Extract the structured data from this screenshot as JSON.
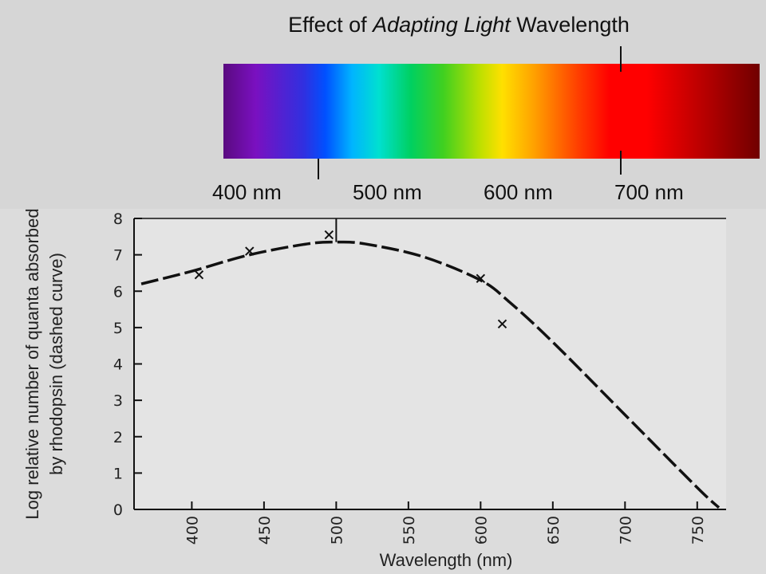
{
  "slide": {
    "title_parts": [
      "Effect of ",
      "Adapting Light",
      " Wavelength"
    ],
    "spectrum_labels": [
      "400 nm",
      "500 nm",
      "600 nm",
      "700 nm"
    ]
  },
  "chart_data": {
    "type": "scatter",
    "title": "",
    "xlabel": "Wavelength (nm)",
    "ylabel_lines": [
      "Log relative number of quanta absorbed",
      "by rhodopsin (dashed curve)"
    ],
    "xlim": [
      360,
      770
    ],
    "ylim": [
      0,
      8
    ],
    "x_ticks": [
      400,
      450,
      500,
      550,
      600,
      650,
      700,
      750
    ],
    "y_ticks": [
      0,
      1,
      2,
      3,
      4,
      5,
      6,
      7,
      8
    ],
    "series": [
      {
        "style": "dashed curve",
        "x": [
          365,
          400,
          440,
          480,
          500,
          520,
          560,
          600,
          620,
          650,
          700,
          750,
          765
        ],
        "y": [
          6.2,
          6.55,
          7.0,
          7.3,
          7.35,
          7.3,
          6.95,
          6.3,
          5.7,
          4.6,
          2.6,
          0.6,
          0.05
        ]
      },
      {
        "style": "x markers",
        "x": [
          405,
          440,
          495,
          600,
          615
        ],
        "y": [
          6.45,
          7.1,
          7.55,
          6.35,
          5.1
        ]
      }
    ],
    "annotations": [
      {
        "type": "vertical line",
        "x": 500,
        "y_from": 7.35,
        "y_to": 8
      }
    ],
    "grid": false
  }
}
